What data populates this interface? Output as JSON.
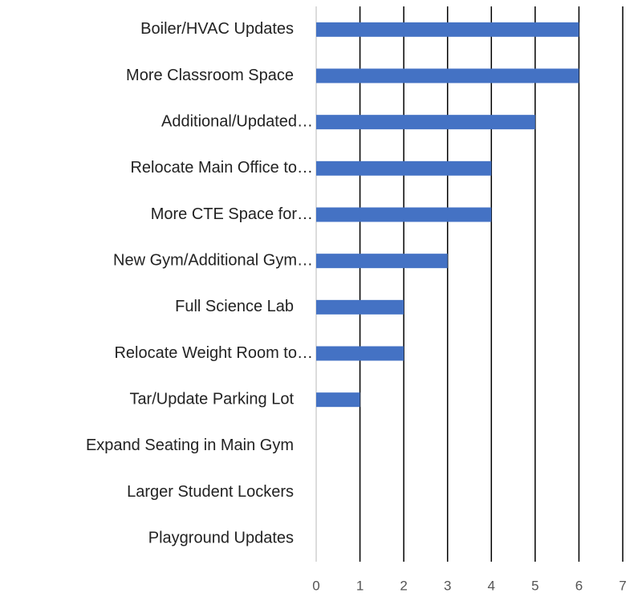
{
  "chart_data": {
    "type": "bar",
    "orientation": "horizontal",
    "categories": [
      "Boiler/HVAC Updates",
      "More Classroom Space",
      "Additional/Updated…",
      "Relocate Main Office to…",
      "More CTE Space for…",
      "New Gym/Additional Gym…",
      "Full Science Lab",
      "Relocate Weight Room to…",
      "Tar/Update Parking Lot",
      "Expand Seating in Main Gym",
      "Larger Student Lockers",
      "Playground Updates"
    ],
    "values": [
      6,
      6,
      5,
      4,
      4,
      3,
      2,
      2,
      1,
      0,
      0,
      0
    ],
    "color": "#4472c4",
    "xlim": [
      0,
      7
    ],
    "xticks": [
      0,
      1,
      2,
      3,
      4,
      5,
      6,
      7
    ],
    "grid": true
  }
}
